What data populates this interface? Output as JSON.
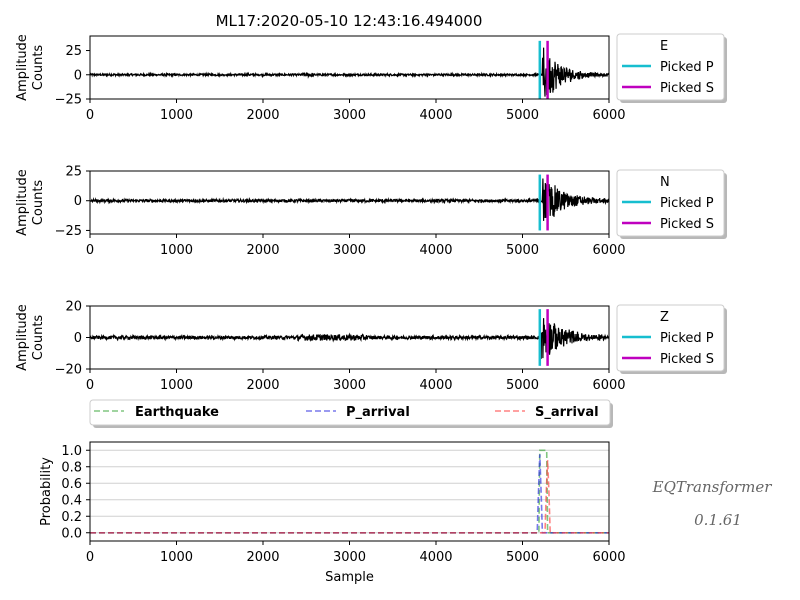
{
  "figure": {
    "title": "ML17:2020-05-10 12:43:16.494000",
    "watermark_name": "EQTransformer",
    "watermark_version": "0.1.61"
  },
  "chart_data": [
    {
      "type": "line",
      "channel": "E",
      "ylabel_line1": "Amplitude",
      "ylabel_line2": "Counts",
      "xlim": [
        0,
        6000
      ],
      "ylim": [
        -25,
        40
      ],
      "yticks": [
        -25,
        0,
        25
      ],
      "xticks": [
        0,
        1000,
        2000,
        3000,
        4000,
        5000,
        6000
      ],
      "series": [
        {
          "name": "E",
          "color": "#000000",
          "noise_amp": 1,
          "event_amp": 34,
          "event_start": 5230,
          "decay": 200
        }
      ],
      "picks": {
        "P": 5200,
        "S": 5290
      },
      "pick_ymin": -25,
      "pick_ymax": 35,
      "legend": {
        "entries": [
          "E",
          "Picked P",
          "Picked S"
        ],
        "placement": "right"
      }
    },
    {
      "type": "line",
      "channel": "N",
      "ylabel_line1": "Amplitude",
      "ylabel_line2": "Counts",
      "xlim": [
        0,
        6000
      ],
      "ylim": [
        -28,
        25
      ],
      "yticks": [
        -25,
        0,
        25
      ],
      "xticks": [
        0,
        1000,
        2000,
        3000,
        4000,
        5000,
        6000
      ],
      "series": [
        {
          "name": "N",
          "color": "#000000",
          "noise_amp": 1.2,
          "event_amp": 22,
          "event_start": 5230,
          "decay": 250
        }
      ],
      "picks": {
        "P": 5200,
        "S": 5290
      },
      "pick_ymin": -25,
      "pick_ymax": 22,
      "legend": {
        "entries": [
          "N",
          "Picked P",
          "Picked S"
        ],
        "placement": "right"
      }
    },
    {
      "type": "line",
      "channel": "Z",
      "ylabel_line1": "Amplitude",
      "ylabel_line2": "Counts",
      "xlim": [
        0,
        6000
      ],
      "ylim": [
        -20,
        20
      ],
      "yticks": [
        -20,
        0,
        20
      ],
      "xticks": [
        0,
        1000,
        2000,
        3000,
        4000,
        5000,
        6000
      ],
      "series": [
        {
          "name": "Z",
          "color": "#000000",
          "noise_amp": 1.1,
          "event_amp": 17,
          "event_start": 5210,
          "decay": 260
        }
      ],
      "picks": {
        "P": 5200,
        "S": 5290
      },
      "pick_ymin": -18,
      "pick_ymax": 18,
      "legend": {
        "entries": [
          "Z",
          "Picked P",
          "Picked S"
        ],
        "placement": "right"
      }
    },
    {
      "type": "line",
      "channel": "probability",
      "xlabel": "Sample",
      "ylabel": "Probability",
      "xlim": [
        0,
        6000
      ],
      "ylim": [
        -0.1,
        1.1
      ],
      "yticks": [
        0.0,
        0.2,
        0.4,
        0.6,
        0.8,
        1.0
      ],
      "ytick_labels": [
        "0.0",
        "0.2",
        "0.4",
        "0.6",
        "0.8",
        "1.0"
      ],
      "xticks": [
        0,
        1000,
        2000,
        3000,
        4000,
        5000,
        6000
      ],
      "grid": "horizontal",
      "series": [
        {
          "name": "Earthquake",
          "color": "#2ca02c",
          "x": [
            0,
            5190,
            5200,
            5280,
            5290,
            6000
          ],
          "y": [
            0,
            0,
            1.0,
            1.0,
            0,
            0
          ]
        },
        {
          "name": "P_arrival",
          "color": "#1f1fdf",
          "x": [
            0,
            5170,
            5185,
            5200,
            5215,
            5230,
            6000
          ],
          "y": [
            0,
            0,
            0.5,
            0.95,
            0.5,
            0,
            0
          ]
        },
        {
          "name": "S_arrival",
          "color": "#ff3030",
          "x": [
            0,
            5260,
            5275,
            5290,
            5305,
            5320,
            6000
          ],
          "y": [
            0,
            0,
            0.5,
            0.88,
            0.5,
            0,
            0
          ]
        }
      ],
      "legend": {
        "entries": [
          "Earthquake",
          "P_arrival",
          "S_arrival"
        ],
        "placement": "top"
      }
    }
  ]
}
